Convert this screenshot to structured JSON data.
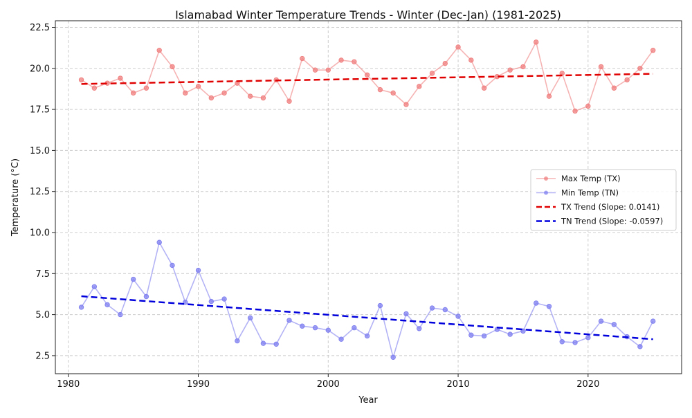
{
  "chart_data": {
    "type": "line",
    "title": "Islamabad Winter Temperature Trends - Winter (Dec-Jan) (1981-2025)",
    "xlabel": "Year",
    "ylabel": "Temperature (°C)",
    "xlim": [
      1979.0,
      2027.2
    ],
    "ylim": [
      1.4,
      22.9
    ],
    "xticks": [
      1980,
      1990,
      2000,
      2010,
      2020
    ],
    "yticks": [
      2.5,
      5.0,
      7.5,
      10.0,
      12.5,
      15.0,
      17.5,
      20.0,
      22.5
    ],
    "grid": true,
    "legend_position": "center-right",
    "x": [
      1981,
      1982,
      1983,
      1984,
      1985,
      1986,
      1987,
      1988,
      1989,
      1990,
      1991,
      1992,
      1993,
      1994,
      1995,
      1996,
      1997,
      1998,
      1999,
      2000,
      2001,
      2002,
      2003,
      2004,
      2005,
      2006,
      2007,
      2008,
      2009,
      2010,
      2011,
      2012,
      2013,
      2014,
      2015,
      2016,
      2017,
      2018,
      2019,
      2020,
      2021,
      2022,
      2023,
      2024,
      2025
    ],
    "series": [
      {
        "name": "Max Temp (TX)",
        "color": "#f08080",
        "style": "line-marker",
        "values": [
          19.3,
          18.8,
          19.1,
          19.4,
          18.5,
          18.8,
          21.1,
          20.1,
          18.5,
          18.9,
          18.2,
          18.5,
          19.1,
          18.3,
          18.2,
          19.3,
          18.0,
          20.6,
          19.9,
          19.9,
          20.5,
          20.4,
          19.6,
          18.7,
          18.5,
          17.8,
          18.9,
          19.7,
          20.3,
          21.3,
          20.5,
          18.8,
          19.5,
          19.9,
          20.1,
          21.6,
          18.3,
          19.7,
          17.4,
          17.7,
          20.1,
          18.8,
          19.3,
          20.0,
          21.1
        ]
      },
      {
        "name": "Min Temp (TN)",
        "color": "#8080f0",
        "style": "line-marker",
        "values": [
          5.45,
          6.7,
          5.6,
          5.0,
          7.15,
          6.1,
          9.4,
          8.0,
          5.75,
          7.7,
          5.8,
          5.95,
          3.4,
          4.8,
          3.25,
          3.2,
          4.65,
          4.3,
          4.2,
          4.05,
          3.5,
          4.2,
          3.7,
          5.55,
          2.4,
          5.05,
          4.15,
          5.4,
          5.3,
          4.9,
          3.75,
          3.7,
          4.1,
          3.8,
          4.0,
          5.7,
          5.5,
          3.35,
          3.3,
          3.6,
          4.6,
          4.4,
          3.65,
          3.05,
          4.6
        ]
      },
      {
        "name": "TX Trend (Slope: 0.0141)",
        "color": "#e00000",
        "style": "dashed",
        "slope": 0.0141,
        "start": [
          1981,
          19.05
        ],
        "end": [
          2025,
          19.67
        ]
      },
      {
        "name": "TN Trend (Slope: -0.0597)",
        "color": "#0000dd",
        "style": "dashed",
        "slope": -0.0597,
        "start": [
          1981,
          6.12
        ],
        "end": [
          2025,
          3.5
        ]
      }
    ]
  }
}
